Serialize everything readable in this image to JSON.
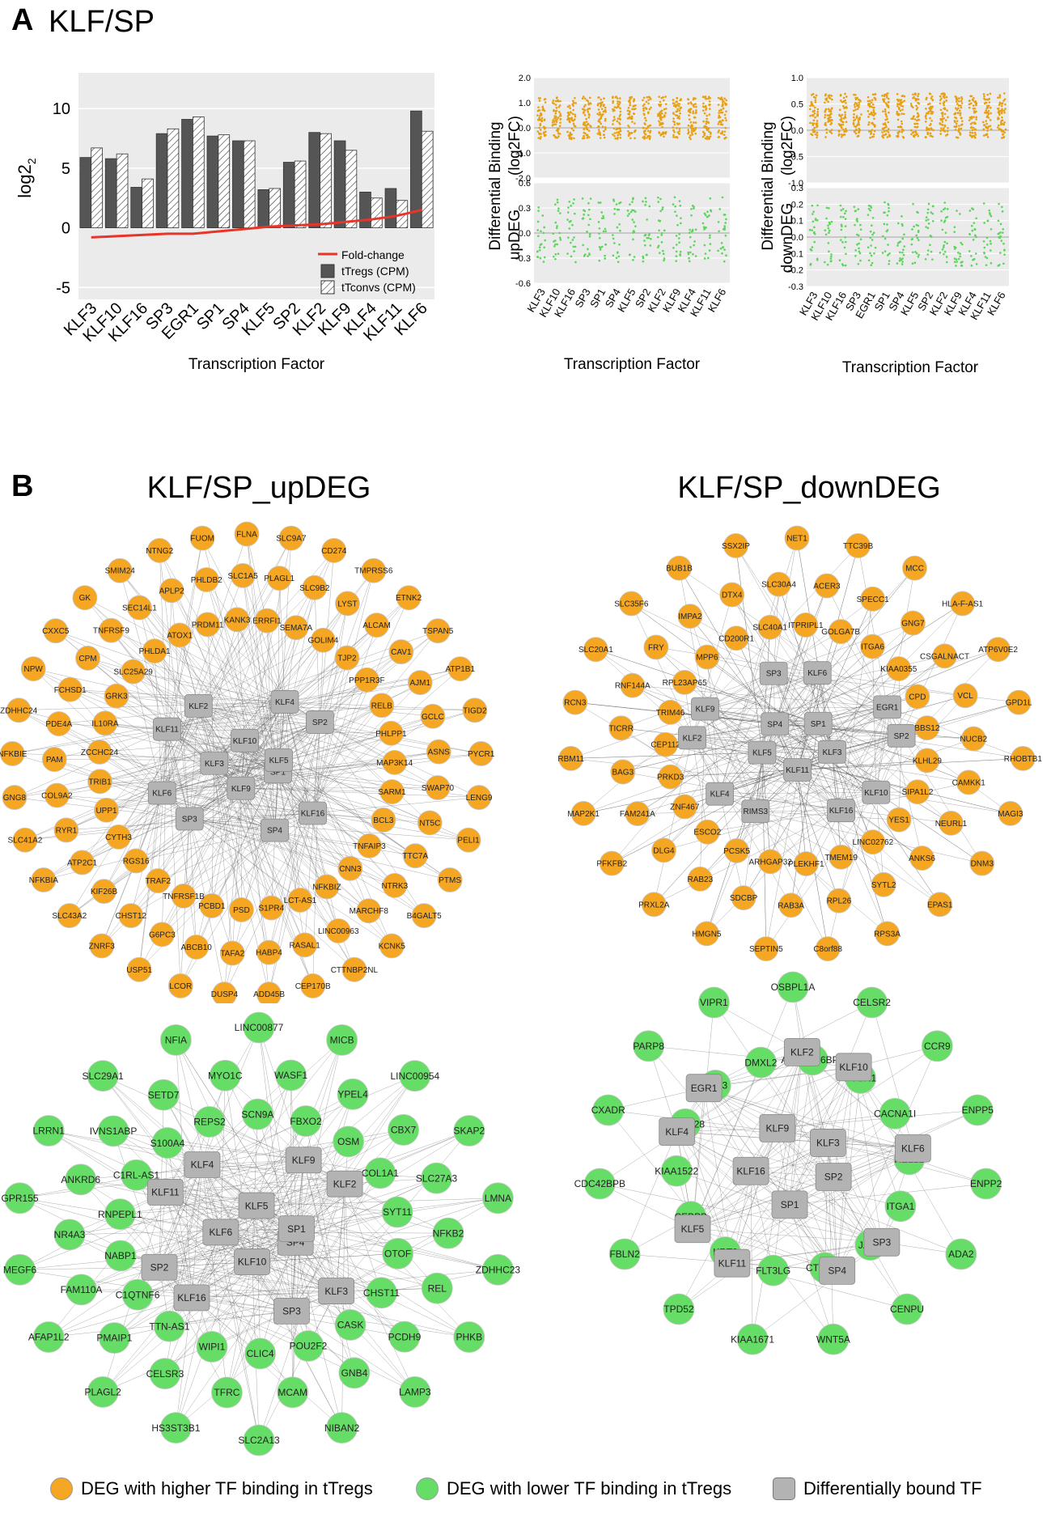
{
  "panelA": {
    "letter": "A",
    "title": "KLF/SP"
  },
  "panelB": {
    "letter": "B",
    "title_up": "KLF/SP_upDEG",
    "title_down": "KLF/SP_downDEG"
  },
  "colors": {
    "orange": "#f5a623",
    "green": "#66dd66",
    "tf_gray": "#b3b3b3",
    "bar_dark": "#555555",
    "foldchange_red": "#e8352a",
    "panel_bg": "#ebebeb",
    "scatter_orange": "#e8a012",
    "scatter_green": "#5ad65a"
  },
  "chart_data": [
    {
      "type": "bar",
      "ylabel": "log2",
      "xlabel": "Transcription Factor",
      "ylim": [
        -6,
        13
      ],
      "yticks": [
        10,
        5,
        0,
        -5
      ],
      "categories": [
        "KLF3",
        "KLF10",
        "KLF16",
        "SP3",
        "EGR1",
        "SP1",
        "SP4",
        "KLF5",
        "SP2",
        "KLF2",
        "KLF9",
        "KLF4",
        "KLF11",
        "KLF6"
      ],
      "series": [
        {
          "name": "tTregs (CPM)",
          "values": [
            5.9,
            5.8,
            3.4,
            7.9,
            9.1,
            7.7,
            7.3,
            3.2,
            5.5,
            8.0,
            7.3,
            3.0,
            3.3,
            9.8
          ]
        },
        {
          "name": "tTconvs (CPM)",
          "values": [
            6.7,
            6.2,
            4.1,
            8.3,
            9.3,
            7.8,
            7.3,
            3.3,
            5.6,
            7.9,
            6.5,
            2.5,
            2.3,
            8.1
          ]
        }
      ],
      "line": {
        "name": "Fold-change",
        "values": [
          -0.8,
          -0.7,
          -0.6,
          -0.5,
          -0.5,
          -0.3,
          -0.1,
          0.1,
          0.2,
          0.3,
          0.5,
          0.7,
          1.0,
          1.5
        ]
      },
      "legend": [
        "Fold-change",
        "tTregs (CPM)",
        "tTconvs (CPM)"
      ],
      "legend_position": "bottom-right"
    },
    {
      "type": "scatter",
      "xlabel": "Transcription Factor",
      "ylabel_line1": "Differential Binding",
      "ylabel_line2": "(log2FC)",
      "ylabel_bottom": "upDEG",
      "categories": [
        "KLF3",
        "KLF10",
        "KLF16",
        "SP3",
        "SP1",
        "SP4",
        "KLF5",
        "SP2",
        "KLF2",
        "KLF9",
        "KLF4",
        "KLF11",
        "KLF6"
      ],
      "top_facet": {
        "ylim": [
          -2.0,
          2.0
        ],
        "yticks": [
          "2.0",
          "1.0",
          "0.0",
          "-1.0",
          "-2.0"
        ]
      },
      "bottom_facet": {
        "ylim": [
          -0.6,
          0.6
        ],
        "yticks": [
          "0.6",
          "0.3",
          "0.0",
          "-0.3",
          "-0.6"
        ]
      }
    },
    {
      "type": "scatter",
      "xlabel": "Transcription Factor",
      "ylabel_line1": "Differential Binding",
      "ylabel_line2": "(log2FC)",
      "ylabel_bottom": "downDEG",
      "categories": [
        "KLF3",
        "KLF10",
        "KLF16",
        "SP3",
        "EGR1",
        "SP1",
        "SP4",
        "KLF5",
        "SP2",
        "KLF2",
        "KLF9",
        "KLF4",
        "KLF11",
        "KLF6"
      ],
      "top_facet": {
        "ylim": [
          -1.0,
          1.0
        ],
        "yticks": [
          "1.0",
          "0.5",
          "0.0",
          "-0.5",
          "-1.0"
        ]
      },
      "bottom_facet": {
        "ylim": [
          -0.3,
          0.3
        ],
        "yticks": [
          "0.3",
          "0.2",
          "0.1",
          "0.0",
          "-0.1",
          "-0.2",
          "-0.3"
        ]
      }
    }
  ],
  "networks": {
    "up_orange": {
      "tfs": [
        "SP1",
        "KLF16",
        "SP4",
        "KLF9",
        "SP3",
        "KLF6",
        "KLF3",
        "KLF11",
        "KLF2",
        "KLF10",
        "KLF4",
        "SP2",
        "KLF5"
      ],
      "genes": [
        "FLNA",
        "SLC9A7",
        "CD274",
        "TMPRSS6",
        "ETNK2",
        "TSPAN5",
        "ATP1B1",
        "TIGD2",
        "PYCR1",
        "LENG9",
        "PELI1",
        "PTMS",
        "B4GALT5",
        "KCNK5",
        "CTTNBP2NL",
        "CEP170B",
        "ADD45B",
        "DUSP4",
        "LCOR",
        "USP51",
        "ZNRF3",
        "SLC43A2",
        "NFKBIA",
        "SLC41A2",
        "GNG8",
        "NFKBIE",
        "ZDHHC24",
        "NPW",
        "CXXC5",
        "GK",
        "SMIM24",
        "NTNG2",
        "FUOM",
        "PLAGL1",
        "SLC9B2",
        "LYST",
        "ALCAM",
        "CAV1",
        "AJM1",
        "GCLC",
        "ASNS",
        "SWAP70",
        "NT5C",
        "TTC7A",
        "NTRK3",
        "MARCHF8",
        "LINC00963",
        "RASAL1",
        "HABP4",
        "TAFA2",
        "ABCB10",
        "G6PC3",
        "CHST12",
        "KIF26B",
        "ATP2C1",
        "RYR1",
        "COL9A2",
        "PAM",
        "PDE4A",
        "FCHSD1",
        "CPM",
        "TNFRSF9",
        "SEC14L1",
        "APLP2",
        "PHLDB2",
        "SLC1A5",
        "SEMA7A",
        "GOLIM4",
        "TJP2",
        "PPP1R3F",
        "RELB",
        "PHLPP1",
        "MAP3K14",
        "SARM1",
        "BCL3",
        "TNFAIP3",
        "CNN3",
        "NFKBIZ",
        "LCT-AS1",
        "S1PR4",
        "PSD",
        "PCBD1",
        "TNFRSF1B",
        "TRAF2",
        "RGS16",
        "CYTH3",
        "UPP1",
        "TRIB1",
        "ZCCHC24",
        "IL10RA",
        "GRK3",
        "SLC25A29",
        "PHLDA1",
        "ATOX1",
        "PRDM11",
        "KANK3",
        "ERRFI1"
      ]
    },
    "down_orange": {
      "tfs": [
        "KLF3",
        "KLF10",
        "KLF16",
        "KLF11",
        "RIMS3",
        "KLF4",
        "KLF5",
        "KLF2",
        "KLF9",
        "SP4",
        "SP3",
        "KLF6",
        "SP1",
        "EGR1",
        "SP2"
      ],
      "genes": [
        "NET1",
        "TTC39B",
        "MCC",
        "HLA-F-AS1",
        "ATP6V0E2",
        "GPD1L",
        "RHOBTB1",
        "MAGI3",
        "DNM3",
        "EPAS1",
        "RPS3A",
        "C8orf88",
        "SEPTIN5",
        "HMGN5",
        "PRXL2A",
        "PFKFB2",
        "MAP2K1",
        "RBM11",
        "RCN3",
        "SLC20A1",
        "SLC35F6",
        "BUB1B",
        "SSX2IP",
        "ACER3",
        "SPECC1",
        "GNG7",
        "CSGALNACT",
        "VCL",
        "NUCB2",
        "CAMKK1",
        "NEURL1",
        "ANKS6",
        "SYTL2",
        "RPL26",
        "RAB3A",
        "SDCBP",
        "RAB23",
        "DLG4",
        "FAM241A",
        "BAG3",
        "TICRR",
        "RNF144A",
        "FRY",
        "IMPA2",
        "DTX4",
        "SLC30A4",
        "GOLGA7B",
        "ITGA6",
        "KIAA0355",
        "CPD",
        "BBS12",
        "KLHL29",
        "SIPA1L2",
        "YES1",
        "LINC02762",
        "TMEM19",
        "PLEKHF1",
        "ARHGAP32",
        "PCSK5",
        "ESCO2",
        "ZNF467",
        "PRKD3",
        "CEP112",
        "TRIM46",
        "RPL23AP65",
        "MPP6",
        "CD200R1",
        "SLC40A1",
        "ITPRIPL1"
      ]
    },
    "up_green": {
      "tfs": [
        "SP4",
        "KLF3",
        "SP3",
        "KLF10",
        "KLF16",
        "SP2",
        "KLF6",
        "KLF11",
        "KLF4",
        "KLF5",
        "KLF9",
        "KLF2",
        "SP1"
      ],
      "genes": [
        "LINC00877",
        "MICB",
        "LINC00954",
        "SKAP2",
        "LMNA",
        "ZDHHC23",
        "PHKB",
        "LAMP3",
        "NIBAN2",
        "SLC2A13",
        "HS3ST3B1",
        "PLAGL2",
        "AFAP1L2",
        "MEGF6",
        "GPR155",
        "LRRN1",
        "SLC29A1",
        "NFIA",
        "WASF1",
        "YPEL4",
        "CBX7",
        "SLC27A3",
        "NFKB2",
        "REL",
        "PCDH9",
        "GNB4",
        "MCAM",
        "TFRC",
        "CELSR3",
        "PMAIP1",
        "FAM110A",
        "NR4A3",
        "ANKRD6",
        "IVNS1ABP",
        "SETD7",
        "MYO1C",
        "FBXO2",
        "OSM",
        "COL1A1",
        "SYT11",
        "OTOF",
        "CHST11",
        "CASK",
        "POU2F2",
        "CLIC4",
        "WIPI1",
        "TTN-AS1",
        "C1QTNF6",
        "NABP1",
        "RNPEPL1",
        "C1RL-AS1",
        "S100A4",
        "REPS2",
        "SCN9A"
      ]
    },
    "down_green": {
      "tfs": [
        "SP2",
        "SP3",
        "SP4",
        "SP1",
        "KLF11",
        "KLF5",
        "KLF16",
        "KLF4",
        "EGR1",
        "KLF9",
        "KLF2",
        "KLF10",
        "KLF3",
        "KLF6"
      ],
      "genes": [
        "OSBPL1A",
        "CELSR2",
        "CCR9",
        "ENPP5",
        "ENPP2",
        "ADA2",
        "CENPU",
        "WNT5A",
        "KIAA1671",
        "TPD52",
        "FBLN2",
        "CDC42BPB",
        "CXADR",
        "PARP8",
        "VIPR1",
        "ANKRD36BP2",
        "PTCH1",
        "CACNA1I",
        "RELL1",
        "ITGA1",
        "JAG2",
        "CTDSPL",
        "FLT3LG",
        "KRT2",
        "CEBPB",
        "KIAA1522",
        "MRPS28",
        "STX3",
        "DMXL2"
      ]
    }
  },
  "legend": {
    "orange_label": "DEG with higher TF binding in tTregs",
    "green_label": "DEG with lower TF binding in tTregs",
    "tf_label": "Differentially bound TF"
  }
}
